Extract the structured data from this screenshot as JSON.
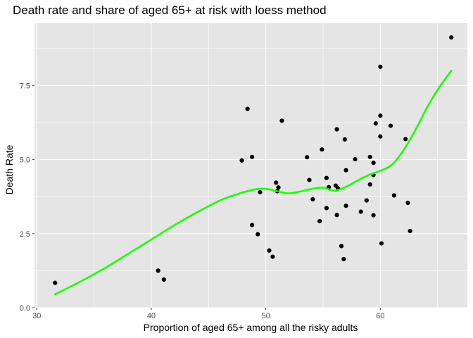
{
  "chart_data": {
    "type": "scatter",
    "title": "Death rate and share of aged 65+ at risk with loess method",
    "xlabel": "Proportion of aged 65+ among all the risky adults",
    "ylabel": "Death Rate",
    "xlim": [
      29.8,
      67.6
    ],
    "ylim": [
      0,
      9.6
    ],
    "x_ticks": [
      30,
      40,
      50,
      60
    ],
    "x_tick_labels": [
      "30",
      "40",
      "50",
      "60"
    ],
    "y_ticks": [
      0,
      2.5,
      5,
      7.5
    ],
    "y_tick_labels": [
      "0.0",
      "2.5",
      "5.0",
      "7.5"
    ],
    "grid": true,
    "background": "#e5e5e5",
    "grid_color": "#ffffff",
    "point_color": "#000000",
    "smooth_color": "#1aff00",
    "points": [
      {
        "x": 31.6,
        "y": 0.84
      },
      {
        "x": 40.6,
        "y": 1.25
      },
      {
        "x": 41.1,
        "y": 0.95
      },
      {
        "x": 47.9,
        "y": 4.97
      },
      {
        "x": 48.4,
        "y": 6.71
      },
      {
        "x": 48.8,
        "y": 5.09
      },
      {
        "x": 48.8,
        "y": 2.79
      },
      {
        "x": 49.3,
        "y": 2.48
      },
      {
        "x": 49.5,
        "y": 3.9
      },
      {
        "x": 50.3,
        "y": 1.93
      },
      {
        "x": 50.6,
        "y": 1.72
      },
      {
        "x": 50.9,
        "y": 4.22
      },
      {
        "x": 51.0,
        "y": 3.93
      },
      {
        "x": 51.1,
        "y": 4.06
      },
      {
        "x": 51.4,
        "y": 6.31
      },
      {
        "x": 53.6,
        "y": 5.08
      },
      {
        "x": 53.8,
        "y": 4.31
      },
      {
        "x": 54.1,
        "y": 3.66
      },
      {
        "x": 54.7,
        "y": 2.92
      },
      {
        "x": 54.9,
        "y": 5.34
      },
      {
        "x": 55.3,
        "y": 3.36
      },
      {
        "x": 55.3,
        "y": 4.38
      },
      {
        "x": 55.5,
        "y": 4.07
      },
      {
        "x": 56.1,
        "y": 4.12
      },
      {
        "x": 56.2,
        "y": 6.02
      },
      {
        "x": 56.3,
        "y": 4.03
      },
      {
        "x": 56.2,
        "y": 3.13
      },
      {
        "x": 56.6,
        "y": 2.08
      },
      {
        "x": 56.8,
        "y": 1.64
      },
      {
        "x": 56.9,
        "y": 5.68
      },
      {
        "x": 57.0,
        "y": 4.64
      },
      {
        "x": 57.0,
        "y": 3.44
      },
      {
        "x": 57.8,
        "y": 5.01
      },
      {
        "x": 58.3,
        "y": 3.24
      },
      {
        "x": 58.8,
        "y": 3.62
      },
      {
        "x": 59.1,
        "y": 5.09
      },
      {
        "x": 59.1,
        "y": 4.16
      },
      {
        "x": 59.4,
        "y": 4.48
      },
      {
        "x": 59.4,
        "y": 4.89
      },
      {
        "x": 59.4,
        "y": 3.12
      },
      {
        "x": 59.6,
        "y": 6.22
      },
      {
        "x": 60.0,
        "y": 5.78
      },
      {
        "x": 60.0,
        "y": 6.48
      },
      {
        "x": 60.0,
        "y": 8.13
      },
      {
        "x": 60.1,
        "y": 2.17
      },
      {
        "x": 60.9,
        "y": 6.14
      },
      {
        "x": 61.2,
        "y": 3.79
      },
      {
        "x": 62.2,
        "y": 5.69
      },
      {
        "x": 62.4,
        "y": 3.54
      },
      {
        "x": 62.6,
        "y": 2.59
      },
      {
        "x": 66.2,
        "y": 9.12
      }
    ],
    "smooth_line": {
      "x": [
        31.6,
        34,
        36,
        38,
        40,
        42,
        44,
        46,
        47.5,
        49,
        50,
        51,
        52,
        53,
        54,
        55,
        56,
        57,
        58,
        59,
        60,
        61,
        62,
        63,
        64,
        65,
        66.2
      ],
      "y": [
        0.45,
        0.92,
        1.35,
        1.82,
        2.3,
        2.78,
        3.22,
        3.62,
        3.83,
        3.99,
        4.01,
        3.93,
        3.86,
        3.92,
        4.01,
        4.05,
        3.95,
        4.08,
        4.29,
        4.48,
        4.62,
        4.82,
        5.3,
        5.95,
        6.7,
        7.35,
        8.0
      ]
    }
  }
}
